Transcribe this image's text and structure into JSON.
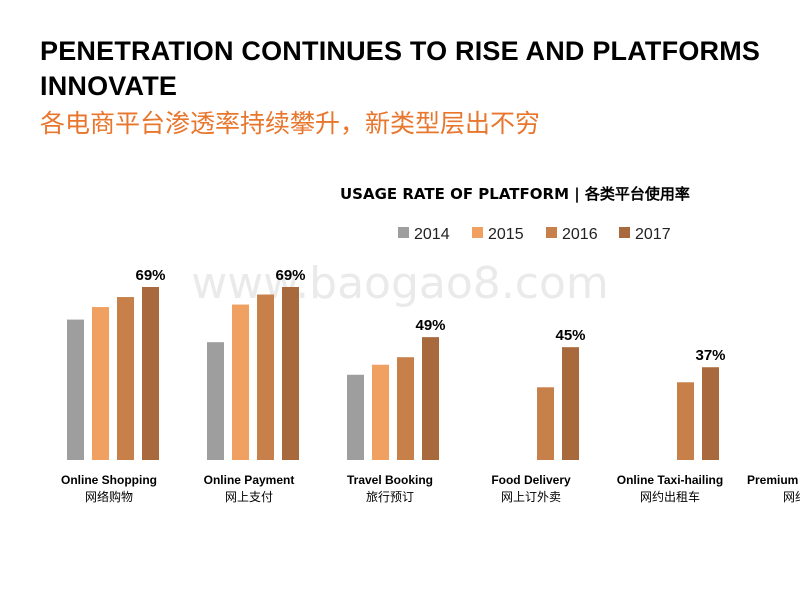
{
  "title_en_line1": "PENETRATION CONTINUES TO RISE AND PLATFORMS",
  "title_en_line2": "INNOVATE",
  "title_cn": "各电商平台渗透率持续攀升，新类型层出不穷",
  "watermark": "www.baogao8.com",
  "colors": {
    "2014": "#9E9E9E",
    "2015": "#F0A060",
    "2016": "#C8804A",
    "2017": "#A86A3C",
    "title_cn": "#E8762D"
  },
  "chart_data": {
    "type": "bar",
    "title": "USAGE RATE OF PLATFORM | 各类平台使用率",
    "legend": [
      "2014",
      "2015",
      "2016",
      "2017"
    ],
    "legend_position": "top",
    "ylim": [
      0,
      80
    ],
    "grid": false,
    "categories": [
      {
        "en": "Online Shopping",
        "cn": "网络购物"
      },
      {
        "en": "Online Payment",
        "cn": "网上支付"
      },
      {
        "en": "Travel Booking",
        "cn": "旅行预订"
      },
      {
        "en": "Food Delivery",
        "cn": "网上订外卖"
      },
      {
        "en": "Online Taxi-hailing",
        "cn": "网约出租车"
      },
      {
        "en": "Premium / Express",
        "cn": "网约专"
      }
    ],
    "series": [
      {
        "name": "2014",
        "values": [
          56,
          47,
          34,
          null,
          null,
          null
        ]
      },
      {
        "name": "2015",
        "values": [
          61,
          62,
          38,
          null,
          null,
          null
        ]
      },
      {
        "name": "2016",
        "values": [
          65,
          66,
          41,
          29,
          31,
          null
        ]
      },
      {
        "name": "2017",
        "values": [
          69,
          69,
          49,
          45,
          37,
          null
        ]
      }
    ],
    "data_labels": [
      "69%",
      "69%",
      "49%",
      "45%",
      "37%",
      ""
    ]
  }
}
